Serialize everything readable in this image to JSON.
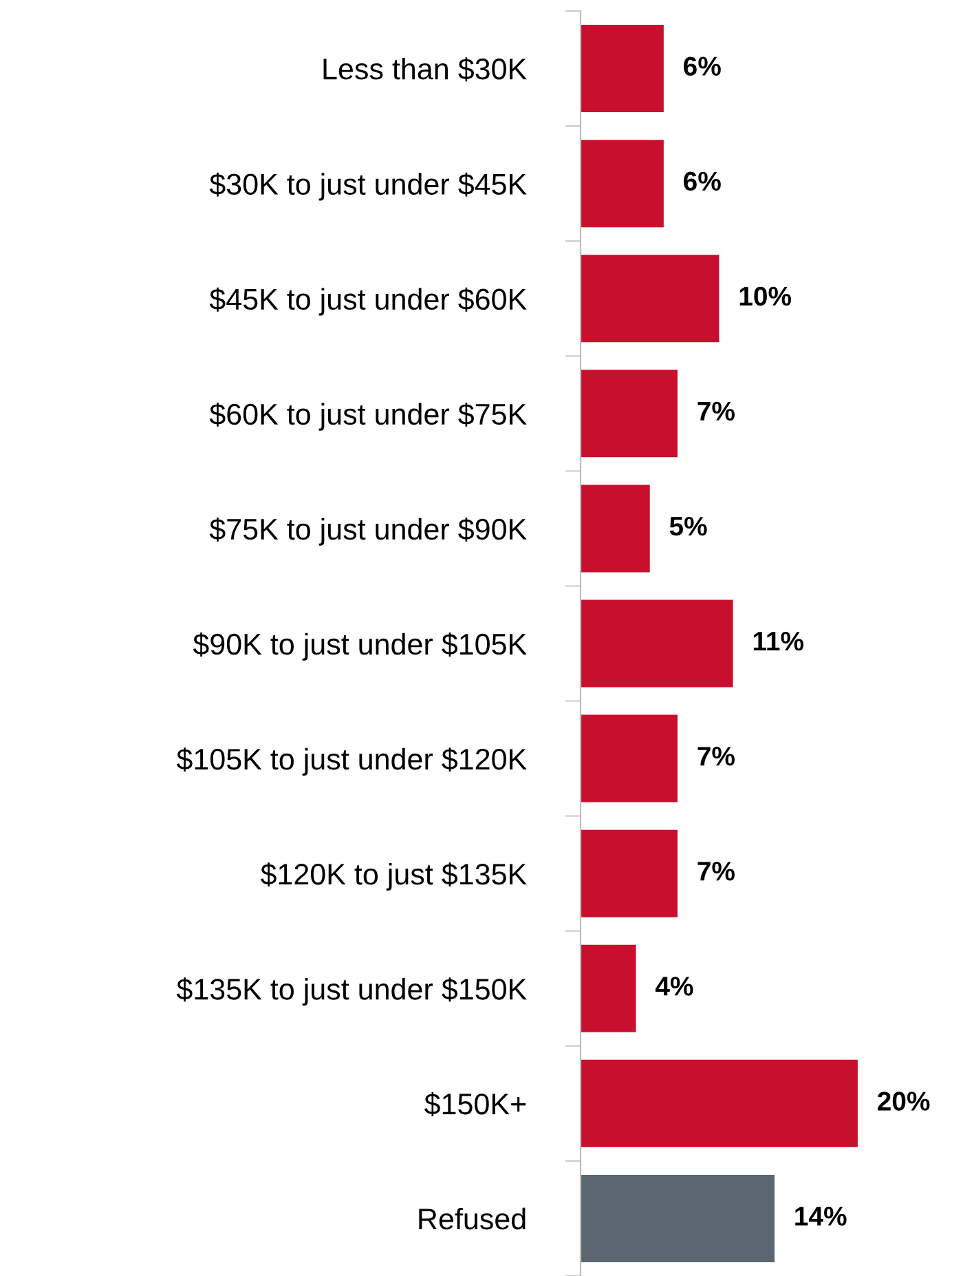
{
  "chart_data": {
    "type": "bar",
    "orientation": "horizontal",
    "categories": [
      "Less than $30K",
      "$30K to just under $45K",
      "$45K to just under $60K",
      "$60K to just under $75K",
      "$75K to just under $90K",
      "$90K to just under $105K",
      "$105K to just under $120K",
      "$120K to just $135K",
      "$135K to just under $150K",
      "$150K+",
      "Refused"
    ],
    "values": [
      6,
      6,
      10,
      7,
      5,
      11,
      7,
      7,
      4,
      20,
      14
    ],
    "value_labels": [
      "6%",
      "6%",
      "10%",
      "7%",
      "5%",
      "11%",
      "7%",
      "7%",
      "4%",
      "20%",
      "14%"
    ],
    "colors": [
      "#c8102e",
      "#c8102e",
      "#c8102e",
      "#c8102e",
      "#c8102e",
      "#c8102e",
      "#c8102e",
      "#c8102e",
      "#c8102e",
      "#c8102e",
      "#5b6670"
    ],
    "grid": false,
    "legend": false
  }
}
